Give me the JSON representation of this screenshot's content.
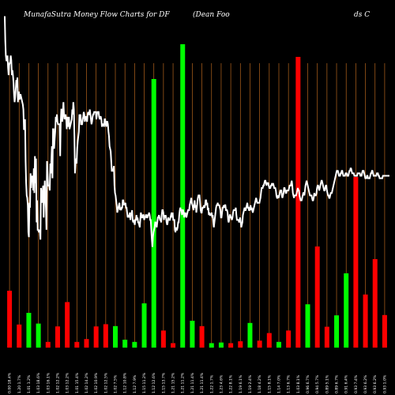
{
  "page": {
    "title": "MunafaSutra  Money Flow  Charts for DF",
    "subtitle_left": "(Dean  Foo",
    "subtitle_right": "ds C"
  },
  "colors": {
    "background": "#000000",
    "grid": "#b5651d",
    "up": "#00ff00",
    "down": "#ff0000",
    "line": "#ffffff",
    "text": "#ffffff"
  },
  "chart_data": {
    "type": "bar",
    "title": "MunafaSutra  Money Flow  Charts for DF",
    "subtitle": "(Dean  Foods C",
    "ylim": [
      0,
      100
    ],
    "price_ylim": [
      0,
      100
    ],
    "grid": "vertical",
    "categories": [
      "0.00 18.4%",
      "1.20 1.7%",
      "1.01 1.2%",
      "1.03 18.6%",
      "1.03 16.1%",
      "1.02 12.2%",
      "1.03 12.2%",
      "1.01 15.4%",
      "1.02 14.2%",
      "1.02 10.9%",
      "1.02 12.5%",
      "1.02 7.5%",
      "1.12 10.8%",
      "1.12 7.9%",
      "1.15 11.2%",
      "1.12 12.6%",
      "1.15 13.7%",
      "1.21 15.2%",
      "1.21 11.2%",
      "1.21 11.4%",
      "1.21 11.4%",
      "1.22 1.7%",
      "1.23 4.6%",
      "1.22 8.1%",
      "1.19 6.1%",
      "1.19 2.4%",
      "1.18 4.2%",
      "1.15 8.1%",
      "1.14 7.0%",
      "1.13 6.7%",
      "1.03 8.1%",
      "0.96 6.7%",
      "0.94 5.7%",
      "0.89 5.1%",
      "0.89 6.7%",
      "0.91 6.4%",
      "0.93 7.4%",
      "0.93 6.2%",
      "0.93 6.2%",
      "0.93 1.0%"
    ],
    "series": [
      {
        "colors": [
          "down",
          "down",
          "up",
          "up",
          "down",
          "down",
          "down",
          "down",
          "down",
          "down",
          "down",
          "up",
          "up",
          "up",
          "up",
          "up",
          "down",
          "down",
          "up",
          "up",
          "down",
          "up",
          "up",
          "down",
          "down",
          "up",
          "down",
          "down",
          "up",
          "down",
          "down",
          "up",
          "down",
          "down",
          "up",
          "up",
          "down",
          "down",
          "down",
          "down"
        ],
        "values": [
          18,
          7.3,
          11,
          7.6,
          1.8,
          6.7,
          14.4,
          1.8,
          2.7,
          6.7,
          7.4,
          6.8,
          2.5,
          1.8,
          14,
          85,
          5.4,
          1.4,
          96,
          8.5,
          6.8,
          1.4,
          1.6,
          1.4,
          2,
          7.8,
          2.2,
          4.6,
          1.8,
          5.4,
          92,
          13.7,
          32,
          6.6,
          10.2,
          23.5,
          54,
          16.8,
          28,
          10.3
        ]
      }
    ],
    "price_series": {
      "values": [
        135,
        125,
        119,
        117,
        117,
        119,
        114,
        111,
        115,
        116,
        116,
        119,
        117,
        111,
        113,
        111,
        108,
        103,
        100,
        102,
        105,
        109,
        106,
        110,
        100,
        104,
        104,
        101,
        103,
        103,
        102,
        101,
        100,
        99,
        97,
        89,
        89,
        93,
        76,
        67,
        62,
        61,
        58,
        47,
        45,
        59,
        57,
        71,
        65,
        70,
        68,
        70,
        64,
        73,
        63,
        78,
        67,
        77,
        51,
        60,
        48,
        48,
        47,
        48,
        47,
        44,
        65,
        62,
        59,
        63,
        66,
        53,
        62,
        68,
        61,
        57,
        48,
        76,
        71,
        66,
        66,
        66,
        64,
        75,
        71,
        77,
        82,
        69,
        89,
        89,
        81,
        85,
        88,
        94,
        92,
        95,
        92,
        91,
        91,
        91,
        91,
        78,
        92,
        97,
        97,
        92,
        96,
        100,
        95,
        93,
        94,
        95,
        93,
        89,
        94,
        91,
        90,
        94,
        89,
        90,
        91,
        92,
        93,
        97,
        95,
        100,
        97,
        86,
        71,
        75,
        77,
        75,
        81,
        84,
        86,
        88,
        95,
        94,
        95,
        91,
        91,
        91,
        93,
        94,
        96,
        95,
        92,
        94,
        94,
        93,
        92,
        95,
        96,
        95,
        95,
        97,
        95,
        93,
        91,
        92,
        94,
        95,
        95,
        96,
        96,
        96,
        96,
        93,
        95,
        96,
        96,
        96,
        94,
        93,
        94,
        94,
        93,
        90,
        91,
        91,
        91,
        90,
        93,
        93,
        91,
        90,
        92,
        92,
        91,
        88,
        86,
        82,
        81,
        80,
        76,
        72,
        72,
        72,
        73,
        74,
        66,
        63,
        62,
        60,
        58,
        55,
        56,
        57,
        58,
        59,
        56,
        57,
        56,
        57,
        57,
        60,
        60,
        58,
        59,
        58,
        59,
        57,
        57,
        55,
        53,
        54,
        53,
        54,
        55,
        52,
        55,
        54,
        56,
        52,
        51,
        52,
        51,
        50,
        52,
        52,
        54,
        52,
        53,
        51,
        51,
        50,
        49,
        52,
        55,
        54,
        53,
        53,
        54,
        54,
        52,
        53,
        53,
        54,
        54,
        53,
        53,
        54,
        54,
        55,
        54,
        52,
        52,
        48,
        44,
        41,
        45,
        47,
        48,
        49,
        51,
        51,
        50,
        49,
        51,
        53,
        53,
        54,
        53,
        52,
        52,
        51,
        54,
        56,
        56,
        55,
        52,
        54,
        53,
        54,
        53,
        51,
        50,
        51,
        53,
        52,
        52,
        52,
        53,
        54,
        55,
        53,
        55,
        52,
        52,
        52,
        48,
        47,
        49,
        48,
        48,
        49,
        51,
        51,
        54,
        56,
        57,
        56,
        56,
        54,
        56,
        56,
        55,
        53,
        54,
        55,
        54,
        53,
        54,
        55,
        56,
        56,
        56,
        58,
        59,
        60,
        61,
        59,
        58,
        57,
        56,
        58,
        60,
        57,
        58,
        55,
        57,
        59,
        61,
        62,
        62,
        62,
        59,
        56,
        55,
        55,
        57,
        57,
        57,
        58,
        57,
        58,
        60,
        60,
        58,
        59,
        56,
        57,
        54,
        55,
        54,
        54,
        54,
        55,
        53,
        54,
        51,
        49,
        51,
        53,
        55,
        57,
        58,
        58,
        59,
        58,
        58,
        58,
        57,
        56,
        53,
        53,
        55,
        57,
        57,
        58,
        57,
        58,
        58,
        56,
        56,
        56,
        55,
        52,
        51,
        52,
        54,
        54,
        53,
        53,
        52,
        53,
        55,
        56,
        56,
        56,
        56,
        57,
        54,
        52,
        52,
        52,
        52,
        51,
        52,
        53,
        51,
        49,
        50,
        51,
        54,
        55,
        56,
        57,
        56,
        56,
        57,
        58,
        59,
        57,
        57,
        56,
        56,
        57,
        58,
        56,
        57,
        56,
        55,
        56,
        57,
        58,
        59,
        60,
        61,
        60,
        59,
        59,
        59,
        59,
        59,
        60,
        61,
        63,
        65,
        65,
        65,
        66,
        66,
        67,
        68,
        68,
        67,
        66,
        67,
        67,
        67,
        66,
        65,
        65,
        65,
        66,
        66,
        67,
        66,
        67,
        66,
        65,
        65,
        65,
        64,
        62,
        61,
        61,
        62,
        61,
        62,
        63,
        64,
        64,
        64,
        62,
        61,
        62,
        63,
        65,
        65,
        64,
        63,
        63,
        64,
        64,
        64,
        64,
        65,
        66,
        66,
        66,
        67,
        68,
        66,
        63,
        62,
        61,
        62,
        62,
        62,
        62,
        63,
        64,
        65,
        64,
        64,
        62,
        61,
        60,
        60,
        60,
        61,
        62,
        63,
        63,
        62,
        64,
        66,
        67,
        68,
        67,
        66,
        65,
        64,
        63,
        62,
        62,
        62,
        62,
        61,
        60,
        60,
        61,
        63,
        62,
        62,
        62,
        63,
        65,
        66,
        66,
        65,
        64,
        65,
        66,
        67,
        68,
        68,
        67,
        66,
        65,
        64,
        64,
        65,
        66,
        66,
        64,
        63,
        62,
        62,
        61,
        61,
        62,
        63,
        63,
        63,
        64,
        65,
        66,
        67,
        68,
        69,
        70,
        71,
        72,
        72,
        72,
        71,
        70,
        70,
        70,
        71,
        71,
        72,
        72,
        71,
        70,
        70,
        70,
        70,
        71,
        71,
        71,
        70,
        70,
        70,
        71,
        72,
        72,
        73,
        73,
        72,
        71,
        71,
        71,
        71,
        70,
        70,
        70,
        70,
        70,
        70,
        71,
        71,
        71,
        71,
        71,
        70,
        70,
        70,
        71,
        72,
        72,
        72,
        71,
        70,
        69,
        69,
        69,
        70,
        70,
        69,
        69,
        69,
        69,
        70,
        71,
        71,
        72,
        72,
        71,
        70,
        70,
        70,
        70,
        70,
        70,
        71,
        71,
        71,
        70,
        70,
        69,
        69,
        69,
        69,
        69,
        69,
        70,
        70,
        70,
        70,
        70,
        70,
        70,
        70,
        70,
        70,
        70,
        70,
        70
      ]
    }
  }
}
